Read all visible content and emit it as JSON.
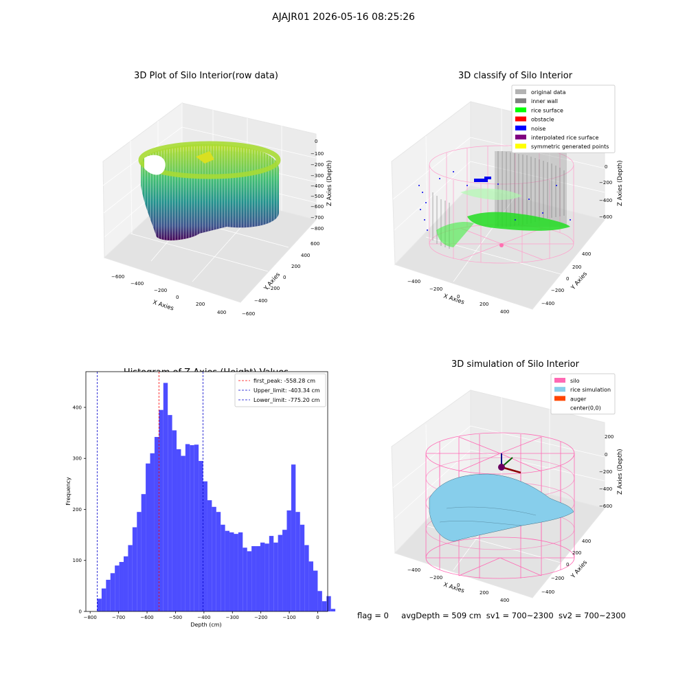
{
  "suptitle": "AJAJR01 2026-05-16 08:25:26",
  "panels": {
    "raw": {
      "title": "3D Plot of Silo Interior(row data)",
      "xlabel": "X Axies",
      "ylabel": "Y Axies",
      "zlabel": "Z Axies (Depth)",
      "xticks": [
        "−600",
        "−400",
        "−200",
        "0",
        "200",
        "400"
      ],
      "yticks": [
        "600",
        "400",
        "200",
        "0",
        "−200",
        "−400",
        "−600"
      ],
      "zticks": [
        "0",
        "−100",
        "−200",
        "−300",
        "−400",
        "−500",
        "−600",
        "−700",
        "−800"
      ]
    },
    "classify": {
      "title": "3D classify of Silo Interior",
      "xlabel": "X Axies",
      "ylabel": "Y Axies",
      "zlabel": "Z Axies (Depth)",
      "xticks": [
        "−400",
        "−200",
        "0",
        "200",
        "400"
      ],
      "yticks": [
        "400",
        "200",
        "0",
        "−200",
        "−400"
      ],
      "zticks": [
        "0",
        "−200",
        "−400",
        "−600"
      ],
      "legend": [
        {
          "label": "original data",
          "color": "#b3b3b3"
        },
        {
          "label": "inner wall",
          "color": "#808080"
        },
        {
          "label": "rice surface",
          "color": "#00ff00"
        },
        {
          "label": "obstacle",
          "color": "#ff0000"
        },
        {
          "label": "noise",
          "color": "#0000ff"
        },
        {
          "label": "interpolated rice surface",
          "color": "#800080"
        },
        {
          "label": "symmetric generated points",
          "color": "#ffff00"
        }
      ]
    },
    "simulation": {
      "title": "3D simulation of Silo Interior",
      "xlabel": "X Axies",
      "ylabel": "Y Axies",
      "zlabel": "Z Axies (Depth)",
      "xticks": [
        "−400",
        "−200",
        "0",
        "200",
        "400"
      ],
      "yticks": [
        "400",
        "200",
        "0",
        "−200",
        "−400"
      ],
      "zticks": [
        "200",
        "0",
        "−200",
        "−400",
        "−600"
      ],
      "legend": [
        {
          "label": "silo",
          "color": "#ff69b4"
        },
        {
          "label": "rice simulation",
          "color": "#87ceeb"
        },
        {
          "label": "auger",
          "color": "#ff4500"
        },
        {
          "label": "center(0,0)",
          "color": ""
        }
      ]
    }
  },
  "status": {
    "flag": "flag = 0",
    "avg": "avgDepth = 509 cm",
    "sv1": "sv1 = 700~2300",
    "sv2": "sv2 = 700~2300"
  },
  "chart_data": {
    "type": "bar",
    "title": "Histogram of Z-Axies (Height) Values",
    "xlabel": "Depth (cm)",
    "ylabel": "Frequency",
    "xlim": [
      -815,
      35
    ],
    "ylim": [
      0,
      470
    ],
    "xticks": [
      -800,
      -700,
      -600,
      -500,
      -400,
      -300,
      -200,
      -100,
      0
    ],
    "yticks": [
      0,
      100,
      200,
      300,
      400
    ],
    "bar_color": "#4d4dff",
    "bin_width": 15.5,
    "bin_start": -775.2,
    "values": [
      25,
      45,
      62,
      75,
      90,
      97,
      108,
      130,
      165,
      195,
      230,
      290,
      310,
      342,
      395,
      448,
      385,
      355,
      318,
      305,
      328,
      326,
      327,
      295,
      255,
      218,
      205,
      195,
      170,
      158,
      155,
      152,
      155,
      125,
      118,
      128,
      128,
      135,
      133,
      148,
      135,
      150,
      160,
      198,
      288,
      195,
      170,
      130,
      98,
      80,
      40,
      20,
      30,
      5
    ],
    "lines": [
      {
        "label": "first_peak: -558.28 cm",
        "x": -558.28,
        "color": "#ff0000"
      },
      {
        "label": "Upper_limit: -403.34 cm",
        "x": -403.34,
        "color": "#0000cc"
      },
      {
        "label": "Lower_limit: -775.20 cm",
        "x": -775.2,
        "color": "#0000cc"
      }
    ],
    "legend_position": "top-right"
  }
}
